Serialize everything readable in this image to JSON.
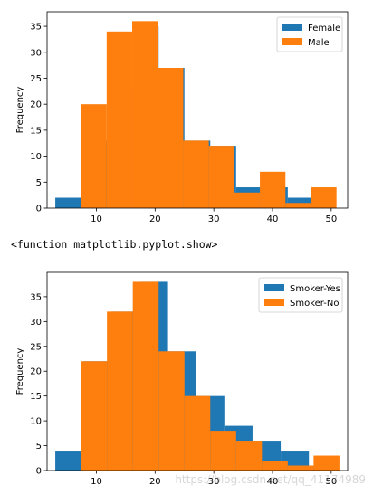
{
  "output_text": "<function matplotlib.pyplot.show>",
  "watermark": "https://blog.csdn.net/qq_41174989",
  "chart_data": [
    {
      "type": "bar",
      "chart_kind": "histogram",
      "ylabel": "Frequency",
      "xlim": [
        1.6,
        52.8
      ],
      "ylim": [
        0,
        37.8
      ],
      "xticks": [
        10,
        20,
        30,
        40,
        50
      ],
      "yticks": [
        0,
        5,
        10,
        15,
        20,
        25,
        30,
        35
      ],
      "legend_position": "top-right",
      "series": [
        {
          "name": "Female",
          "color": "#1f77b4",
          "bins": [
            {
              "x0": 3,
              "x1": 7.4,
              "value": 2
            },
            {
              "x0": 7.4,
              "x1": 11.8,
              "value": 13
            },
            {
              "x0": 11.8,
              "x1": 16.2,
              "value": 23
            },
            {
              "x0": 16.2,
              "x1": 20.6,
              "value": 35
            },
            {
              "x0": 20.6,
              "x1": 25.0,
              "value": 27
            },
            {
              "x0": 25.0,
              "x1": 29.4,
              "value": 13
            },
            {
              "x0": 29.4,
              "x1": 33.8,
              "value": 12
            },
            {
              "x0": 33.8,
              "x1": 38.2,
              "value": 4
            },
            {
              "x0": 38.2,
              "x1": 42.6,
              "value": 4
            },
            {
              "x0": 42.6,
              "x1": 47.0,
              "value": 2
            }
          ]
        },
        {
          "name": "Male",
          "color": "#ff7f0e",
          "bins": [
            {
              "x0": 7.4,
              "x1": 11.75,
              "value": 20
            },
            {
              "x0": 11.75,
              "x1": 16.1,
              "value": 34
            },
            {
              "x0": 16.1,
              "x1": 20.45,
              "value": 36
            },
            {
              "x0": 20.45,
              "x1": 24.8,
              "value": 27
            },
            {
              "x0": 24.8,
              "x1": 29.15,
              "value": 13
            },
            {
              "x0": 29.15,
              "x1": 33.5,
              "value": 12
            },
            {
              "x0": 33.5,
              "x1": 37.85,
              "value": 3
            },
            {
              "x0": 37.85,
              "x1": 42.2,
              "value": 7
            },
            {
              "x0": 42.2,
              "x1": 46.55,
              "value": 1
            },
            {
              "x0": 46.55,
              "x1": 50.9,
              "value": 4
            }
          ]
        }
      ]
    },
    {
      "type": "bar",
      "chart_kind": "histogram",
      "ylabel": "Frequency",
      "xlim": [
        1.6,
        52.8
      ],
      "ylim": [
        0,
        39.9
      ],
      "xticks": [
        10,
        20,
        30,
        40,
        50
      ],
      "yticks": [
        0,
        5,
        10,
        15,
        20,
        25,
        30,
        35
      ],
      "legend_position": "top-right",
      "series": [
        {
          "name": "Smoker-Yes",
          "color": "#1f77b4",
          "bins": [
            {
              "x0": 3,
              "x1": 7.8,
              "value": 4
            },
            {
              "x0": 7.8,
              "x1": 12.6,
              "value": 22
            },
            {
              "x0": 12.6,
              "x1": 17.4,
              "value": 32
            },
            {
              "x0": 17.4,
              "x1": 22.2,
              "value": 38
            },
            {
              "x0": 22.2,
              "x1": 27.0,
              "value": 24
            },
            {
              "x0": 27.0,
              "x1": 31.8,
              "value": 15
            },
            {
              "x0": 31.8,
              "x1": 36.6,
              "value": 9
            },
            {
              "x0": 36.6,
              "x1": 41.4,
              "value": 6
            },
            {
              "x0": 41.4,
              "x1": 46.2,
              "value": 4
            },
            {
              "x0": 46.2,
              "x1": 51.0,
              "value": 1
            }
          ]
        },
        {
          "name": "Smoker-No",
          "color": "#ff7f0e",
          "bins": [
            {
              "x0": 7.4,
              "x1": 11.8,
              "value": 22
            },
            {
              "x0": 11.8,
              "x1": 16.2,
              "value": 32
            },
            {
              "x0": 16.2,
              "x1": 20.6,
              "value": 38
            },
            {
              "x0": 20.6,
              "x1": 25.0,
              "value": 24
            },
            {
              "x0": 25.0,
              "x1": 29.4,
              "value": 15
            },
            {
              "x0": 29.4,
              "x1": 33.8,
              "value": 8
            },
            {
              "x0": 33.8,
              "x1": 38.2,
              "value": 6
            },
            {
              "x0": 38.2,
              "x1": 42.6,
              "value": 2
            },
            {
              "x0": 42.6,
              "x1": 47.0,
              "value": 1
            },
            {
              "x0": 47.0,
              "x1": 51.4,
              "value": 3
            }
          ]
        }
      ]
    }
  ]
}
